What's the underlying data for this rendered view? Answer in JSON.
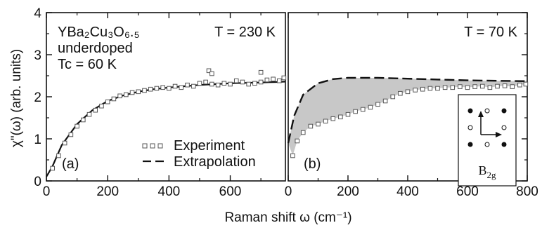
{
  "chart_data": {
    "type": "scatter",
    "ylabel": "χ\"(ω) (arb. units)",
    "xlabel": "Raman shift ω (cm⁻¹)",
    "ylim": [
      0,
      4
    ],
    "y_ticks": [
      "0",
      "1",
      "2",
      "3",
      "4"
    ],
    "grid": false,
    "legend_position": "bottom-right of panel (a)",
    "colors": {
      "data_points": "#555555",
      "fill": "#c8c8c8",
      "line": "#111111"
    },
    "panels": [
      {
        "id": "a",
        "panel_label": "(a)",
        "temperature_label": "T = 230 K",
        "sample_text": [
          "YBa₂Cu₃O₆.₅",
          "underdoped",
          "Tc = 60 K"
        ],
        "xlim": [
          0,
          780
        ],
        "x_ticks": [
          "0",
          "200",
          "400",
          "600"
        ],
        "legend": [
          {
            "label": "Experiment",
            "marker": "square-open"
          },
          {
            "label": "Extrapolation",
            "marker": "dashed-line"
          }
        ],
        "experiment": {
          "x": [
            20,
            40,
            60,
            80,
            100,
            120,
            140,
            160,
            180,
            200,
            220,
            240,
            260,
            280,
            300,
            320,
            340,
            360,
            380,
            400,
            420,
            440,
            460,
            480,
            500,
            520,
            540,
            560,
            580,
            600,
            620,
            640,
            660,
            680,
            700,
            720,
            740,
            760,
            775
          ],
          "y": [
            0.3,
            0.6,
            0.9,
            1.1,
            1.3,
            1.45,
            1.58,
            1.68,
            1.78,
            1.88,
            1.95,
            2.02,
            2.05,
            2.1,
            2.12,
            2.15,
            2.18,
            2.2,
            2.22,
            2.2,
            2.25,
            2.22,
            2.28,
            2.25,
            2.32,
            2.35,
            2.3,
            2.28,
            2.32,
            2.3,
            2.38,
            2.35,
            2.3,
            2.32,
            2.35,
            2.4,
            2.42,
            2.38,
            2.45
          ]
        },
        "outliers": {
          "x": [
            530,
            540,
            700
          ],
          "y": [
            2.62,
            2.55,
            2.58
          ]
        },
        "extrapolation": {
          "x": [
            0,
            20,
            50,
            100,
            150,
            200,
            250,
            300,
            350,
            400,
            450,
            500,
            550,
            600,
            650,
            700,
            750,
            780
          ],
          "y": [
            0.1,
            0.35,
            0.85,
            1.35,
            1.68,
            1.9,
            2.03,
            2.12,
            2.18,
            2.22,
            2.25,
            2.28,
            2.3,
            2.32,
            2.33,
            2.34,
            2.35,
            2.36
          ]
        }
      },
      {
        "id": "b",
        "panel_label": "(b)",
        "temperature_label": "T = 70 K",
        "xlim": [
          0,
          800
        ],
        "x_ticks": [
          "0",
          "200",
          "400",
          "600",
          "800"
        ],
        "inset_label": "B2g",
        "experiment": {
          "x": [
            15,
            30,
            50,
            75,
            100,
            125,
            150,
            175,
            200,
            225,
            250,
            275,
            300,
            325,
            350,
            375,
            400,
            425,
            450,
            475,
            500,
            525,
            550,
            575,
            600,
            625,
            650,
            675,
            700,
            725,
            750,
            775,
            795
          ],
          "y": [
            0.6,
            0.95,
            1.15,
            1.3,
            1.35,
            1.42,
            1.48,
            1.52,
            1.58,
            1.65,
            1.7,
            1.75,
            1.82,
            1.9,
            2.0,
            2.08,
            2.12,
            2.16,
            2.18,
            2.2,
            2.2,
            2.22,
            2.22,
            2.24,
            2.22,
            2.24,
            2.25,
            2.22,
            2.25,
            2.26,
            2.24,
            2.28,
            2.3
          ]
        },
        "extrapolation": {
          "x": [
            0,
            20,
            50,
            100,
            150,
            200,
            300,
            400,
            500,
            600,
            700,
            800
          ],
          "y": [
            0.9,
            1.55,
            2.05,
            2.32,
            2.42,
            2.45,
            2.45,
            2.43,
            2.41,
            2.39,
            2.38,
            2.37
          ]
        }
      }
    ]
  }
}
